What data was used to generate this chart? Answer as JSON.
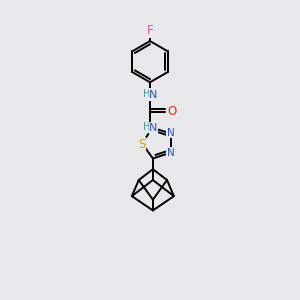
{
  "background_color": "#e8e8eb",
  "figure_size": [
    3.0,
    3.0
  ],
  "dpi": 100,
  "atom_colors": {
    "C": "#000000",
    "N": "#2255cc",
    "O": "#ff2200",
    "S": "#ccaa00",
    "F": "#ee44aa",
    "H": "#449988"
  },
  "bond_color": "#000000",
  "bond_width": 1.4,
  "font_size_atom": 7.5
}
